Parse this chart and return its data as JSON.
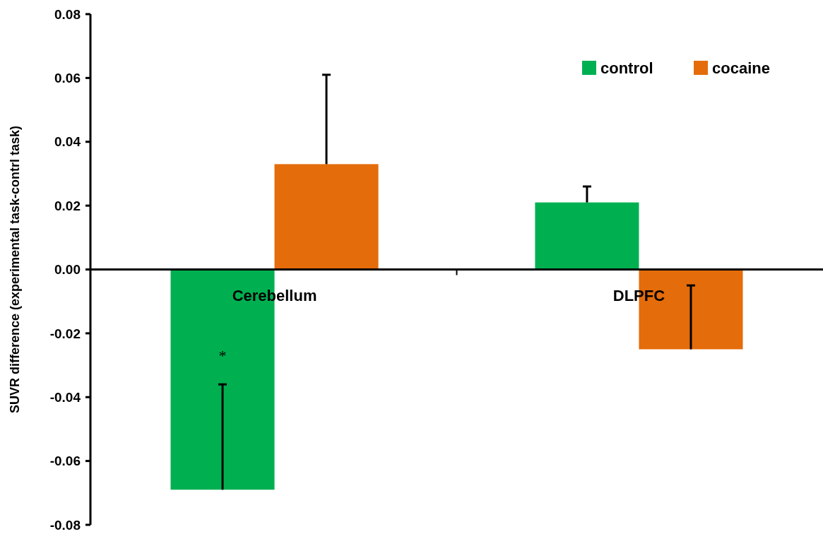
{
  "chart_data": {
    "type": "bar",
    "ylabel": "SUVR difference (experimental task-contrl task)",
    "categories": [
      "Cerebellum",
      "DLPFC"
    ],
    "series": [
      {
        "name": "control",
        "color": "#00b050",
        "values": [
          -0.069,
          0.021
        ],
        "errors": [
          [
            -0.069,
            -0.036
          ],
          [
            0.021,
            0.026
          ]
        ]
      },
      {
        "name": "cocaine",
        "color": "#e46c0a",
        "values": [
          0.033,
          -0.025
        ],
        "errors": [
          [
            0.033,
            0.061
          ],
          [
            -0.025,
            -0.005
          ]
        ]
      }
    ],
    "ylim": [
      -0.08,
      0.08
    ],
    "yticks": [
      {
        "value": -0.08,
        "label": "-0.08"
      },
      {
        "value": -0.06,
        "label": "-0.06"
      },
      {
        "value": -0.04,
        "label": "-0.04"
      },
      {
        "value": -0.02,
        "label": "-0.02"
      },
      {
        "value": 0,
        "label": "0.00"
      },
      {
        "value": 0.02,
        "label": "0.02"
      },
      {
        "value": 0.04,
        "label": "0.04"
      },
      {
        "value": 0.06,
        "label": "0.06"
      },
      {
        "value": 0.08,
        "label": "0.08"
      }
    ],
    "annotations": [
      "*"
    ],
    "legend": "top right",
    "grid": false
  }
}
